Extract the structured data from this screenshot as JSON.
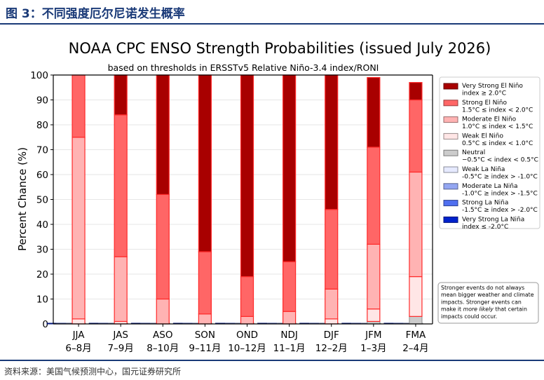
{
  "figure": {
    "header": "图 3：不同强度厄尔尼诺发生概率",
    "source": "资料来源：美国气候预测中心，国元证券研究所"
  },
  "chart_data": {
    "type": "bar",
    "title": "NOAA CPC ENSO Strength Probabilities (issued July 2026)",
    "subtitle": "based on thresholds in ERSSTv5 Relative Niño-3.4 index/RONI",
    "ylabel": "Percent Chance (%)",
    "ylim": [
      0,
      100
    ],
    "yticks": [
      "0",
      "10",
      "20",
      "30",
      "40",
      "50",
      "60",
      "70",
      "80",
      "90",
      "100"
    ],
    "grid": true,
    "legend_position": "right",
    "categories": [
      "JJA",
      "JAS",
      "ASO",
      "SON",
      "OND",
      "NDJ",
      "DJF",
      "JFM",
      "FMA"
    ],
    "category_sublabels": [
      "6–8月",
      "7–9月",
      "8–10月",
      "9–11月",
      "10–12月",
      "11–1月",
      "12–2月",
      "1–3月",
      "2–4月"
    ],
    "series": [
      {
        "name": "Very Strong La Niña",
        "range": "index ≤ -2.0°C",
        "color": "#0022cc",
        "values": [
          0,
          0,
          0,
          0,
          0,
          0,
          0,
          0,
          0
        ]
      },
      {
        "name": "Strong La Niña",
        "range": "-1.5°C ≥ index > -2.0°C",
        "color": "#4f6ff0",
        "values": [
          0,
          0,
          0,
          0,
          0,
          0,
          0,
          0,
          0
        ]
      },
      {
        "name": "Moderate La Niña",
        "range": "-1.0°C ≥ index > -1.5°C",
        "color": "#93a6f2",
        "values": [
          0,
          0,
          0,
          0,
          0,
          0,
          0,
          0,
          0
        ]
      },
      {
        "name": "Weak La Niña",
        "range": "-0.5°C ≥ index > -1.0°C",
        "color": "#e6eaff",
        "values": [
          0,
          0,
          0,
          0,
          0,
          0,
          0,
          0,
          0
        ]
      },
      {
        "name": "Neutral",
        "range": "−0.5°C < index < 0.5°C",
        "color": "#cccccc",
        "values": [
          0,
          0,
          0,
          0,
          0,
          0,
          0,
          1,
          3
        ]
      },
      {
        "name": "Weak El Niño",
        "range": "0.5°C ≤ index < 1.0°C",
        "color": "#ffe6e6",
        "values": [
          2,
          1,
          0,
          0,
          0,
          0,
          2,
          5,
          16
        ]
      },
      {
        "name": "Moderate El Niño",
        "range": "1.0°C ≤ index < 1.5°C",
        "color": "#ffb3b3",
        "values": [
          73,
          26,
          10,
          4,
          3,
          5,
          12,
          26,
          42
        ]
      },
      {
        "name": "Strong El Niño",
        "range": "1.5°C ≤ index < 2.0°C",
        "color": "#ff6666",
        "values": [
          25,
          57,
          42,
          25,
          16,
          20,
          32,
          39,
          29
        ]
      },
      {
        "name": "Very Strong El Niño",
        "range": "index ≥ 2.0°C",
        "color": "#a80000",
        "values": [
          0,
          16,
          48,
          71,
          81,
          75,
          54,
          28,
          7
        ]
      }
    ],
    "legend_order": [
      "Very Strong El Niño",
      "Strong El Niño",
      "Moderate El Niño",
      "Weak El Niño",
      "Neutral",
      "Weak La Niña",
      "Moderate La Niña",
      "Strong La Niña",
      "Very Strong La Niña"
    ],
    "annotation": "Stronger events do not always mean bigger weather and climate impacts. Stronger events can make it more likely that certain impacts could occur.",
    "annotation_emphasis": "more likely"
  }
}
